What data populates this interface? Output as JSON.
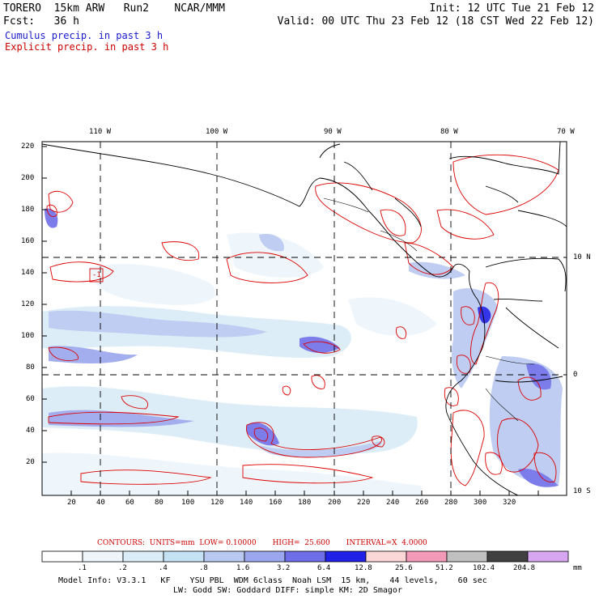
{
  "header": {
    "line1_left": "TORERO  15km ARW   Run2    NCAR/MMM",
    "line1_right": "Init: 12 UTC Tue 21 Feb 12",
    "line2_left": "Fcst:   36 h",
    "line2_right": "Valid: 00 UTC Thu 23 Feb 12 (18 CST Wed 22 Feb 12)",
    "cumulus": "Cumulus precip. in past 3 h",
    "explicit": "Explicit precip. in past 3 h"
  },
  "map": {
    "top_lon_labels": [
      "110 W",
      "100 W",
      "90 W",
      "80 W",
      "70 W"
    ],
    "right_lat_labels": [
      "10 N",
      "0",
      "10 S"
    ],
    "left_ticks": [
      "220",
      "200",
      "180",
      "160",
      "140",
      "120",
      "100",
      "80",
      "60",
      "40",
      "20"
    ],
    "bottom_ticks": [
      "20",
      "40",
      "60",
      "80",
      "100",
      "120",
      "140",
      "160",
      "180",
      "200",
      "220",
      "240",
      "260",
      "280",
      "300",
      "320"
    ],
    "box_label": "-1",
    "background_color": "#ffffff",
    "precip_color": "#6a6aee",
    "contour_color": "#dd0000"
  },
  "legend": {
    "contours_text": "CONTOURS:  UNITS=mm  LOW= 0.10000       HIGH=  25.600       INTERVAL=X  4.0000",
    "color_labels": [
      ".1",
      ".2",
      ".4",
      ".8",
      "1.6",
      "3.2",
      "6.4",
      "12.8",
      "25.6",
      "51.2",
      "102.4",
      "204.8"
    ],
    "units": "mm",
    "colors": [
      "#ffffff",
      "#eef6fb",
      "#d9ecf7",
      "#c4e2f3",
      "#b8c8f0",
      "#9aa6ee",
      "#6e6ee8",
      "#2020e6",
      "#fad6d6",
      "#f29ab8",
      "#c0c0c0",
      "#404040",
      "#d6a6f0"
    ]
  },
  "footer": {
    "line1": "Model Info: V3.3.1   KF    YSU PBL  WDM 6class  Noah LSM  15 km,    44 levels,    60 sec",
    "line2": "LW: Godd SW: Goddard DIFF: simple KM: 2D Smagor"
  }
}
